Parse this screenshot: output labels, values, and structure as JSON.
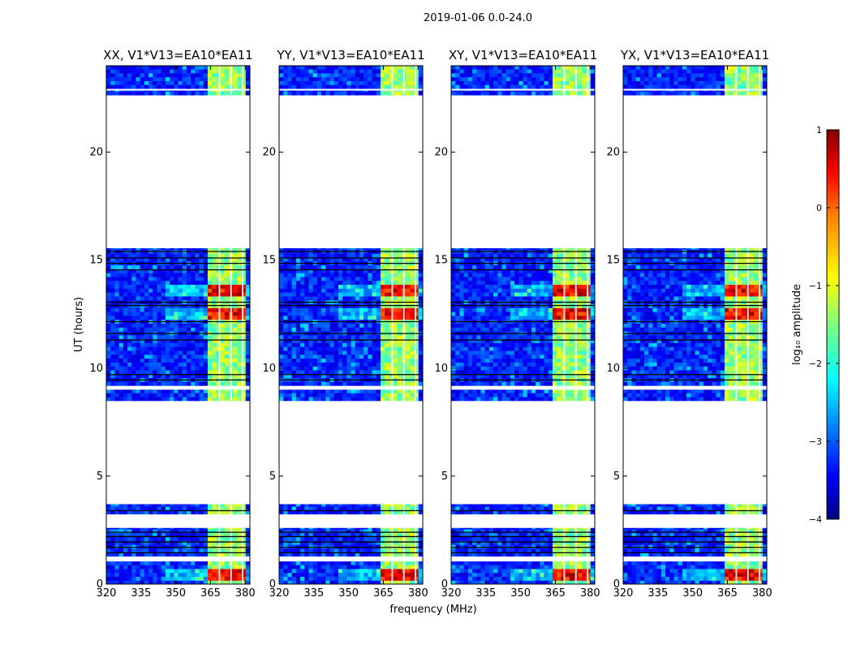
{
  "suptitle": "2019-01-06 0.0-24.0",
  "chart_data": {
    "type": "heatmap",
    "title": "2019-01-06 0.0-24.0",
    "xlabel": "frequency (MHz)",
    "ylabel": "UT (hours)",
    "xlim": [
      320,
      382
    ],
    "ylim": [
      0,
      24
    ],
    "x_ticks": [
      320,
      335,
      350,
      365,
      380
    ],
    "x_tick_labels": [
      "320",
      "335",
      "350",
      "365",
      "380"
    ],
    "y_ticks": [
      0,
      5,
      10,
      15,
      20
    ],
    "y_tick_labels": [
      "0",
      "5",
      "10",
      "15",
      "20"
    ],
    "panels": [
      {
        "title": "XX, V1*V13=EA10*EA11",
        "pol": "XX"
      },
      {
        "title": "YY, V1*V13=EA10*EA11",
        "pol": "YY"
      },
      {
        "title": "XY, V1*V13=EA10*EA11",
        "pol": "XY"
      },
      {
        "title": "YX, V1*V13=EA10*EA11",
        "pol": "YX"
      }
    ],
    "data_blocks_ut": [
      [
        0.0,
        1.05
      ],
      [
        1.3,
        2.6
      ],
      [
        3.25,
        3.7
      ],
      [
        8.5,
        9.0
      ],
      [
        9.2,
        15.55
      ],
      [
        22.65,
        22.85
      ],
      [
        22.95,
        24.0
      ]
    ],
    "flagged_lines_ut": [
      1.45,
      1.7,
      1.95,
      2.2,
      2.4,
      3.4,
      9.45,
      9.7,
      11.3,
      11.6,
      12.15,
      12.9,
      13.05,
      14.55,
      14.85,
      15.1,
      15.4
    ],
    "hot_bands_mhz": [
      [
        363,
        381
      ]
    ],
    "flag_columns_mhz": [
      [
        368.5,
        369.2
      ],
      [
        373.5,
        374.2
      ],
      [
        378.5,
        379.2
      ]
    ],
    "hot_times_ut": [
      [
        12.2,
        12.8
      ],
      [
        13.3,
        13.9
      ],
      [
        0.2,
        0.8
      ]
    ],
    "colorbar": {
      "label": "log₁₀ amplitude",
      "min": -4,
      "max": 1,
      "ticks": [
        1,
        0,
        -1,
        -2,
        -3,
        -4
      ],
      "tick_labels": [
        "1",
        "0",
        "−1",
        "−2",
        "−3",
        "−4"
      ],
      "colormap": "jet",
      "colors": [
        "#00007f",
        "#0000ff",
        "#007fff",
        "#00ffff",
        "#7fff7f",
        "#ffff00",
        "#ff7f00",
        "#ff0000",
        "#7f0000"
      ]
    }
  }
}
